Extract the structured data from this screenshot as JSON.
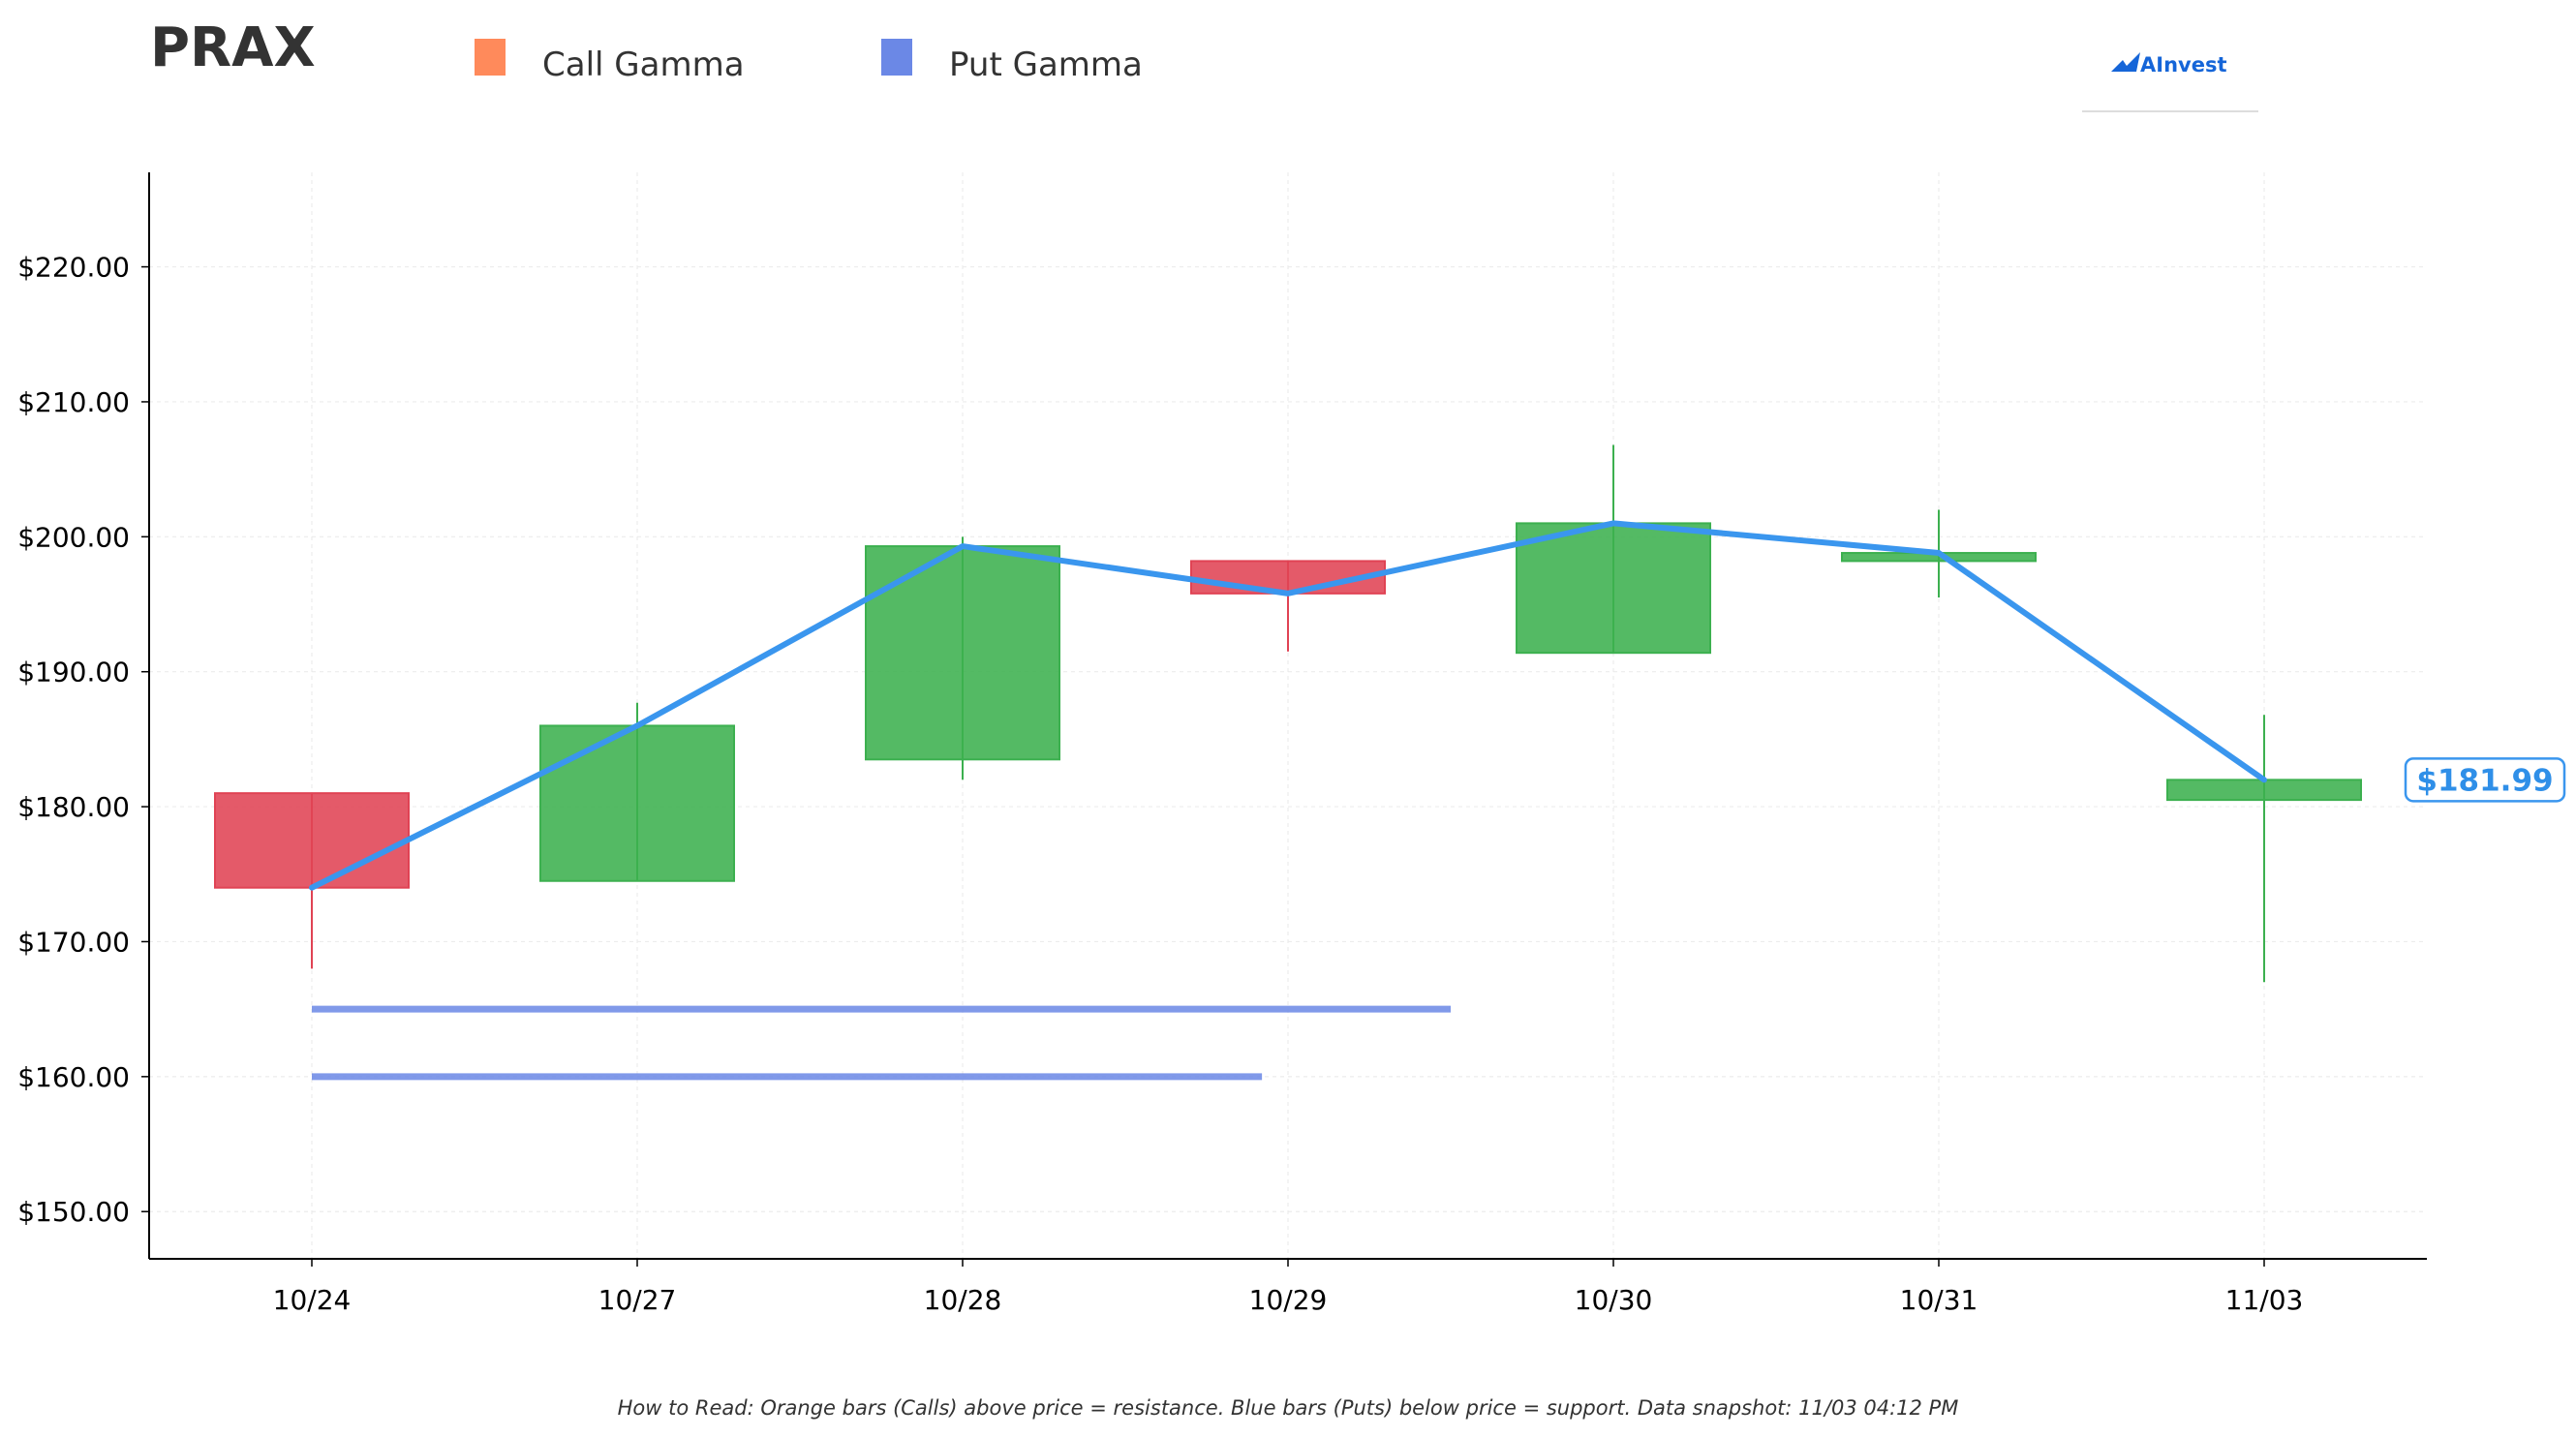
{
  "chart_data": {
    "type": "candlestick",
    "title": "PRAX",
    "legend": {
      "placement": "top",
      "entries": [
        {
          "label": "Call Gamma",
          "color": "#ff8a5b"
        },
        {
          "label": "Put Gamma",
          "color": "#6b88e6"
        }
      ]
    },
    "categories": [
      "10/24",
      "10/27",
      "10/28",
      "10/29",
      "10/30",
      "10/31",
      "11/03"
    ],
    "candles": [
      {
        "date": "10/24",
        "open": 181.0,
        "high": 181.0,
        "low": 168.0,
        "close": 174.0
      },
      {
        "date": "10/27",
        "open": 174.5,
        "high": 187.7,
        "low": 174.5,
        "close": 186.0
      },
      {
        "date": "10/28",
        "open": 183.5,
        "high": 200.0,
        "low": 182.0,
        "close": 199.3
      },
      {
        "date": "10/29",
        "open": 198.2,
        "high": 198.2,
        "low": 191.5,
        "close": 195.8
      },
      {
        "date": "10/30",
        "open": 191.4,
        "high": 206.8,
        "low": 191.4,
        "close": 201.0
      },
      {
        "date": "10/31",
        "open": 198.2,
        "high": 202.0,
        "low": 195.5,
        "close": 198.8
      },
      {
        "date": "11/03",
        "open": 180.5,
        "high": 186.8,
        "low": 167.0,
        "close": 181.99
      }
    ],
    "price_line": {
      "color": "#3a96ee",
      "values": [
        174.0,
        186.0,
        199.3,
        195.8,
        201.0,
        198.8,
        181.99
      ]
    },
    "put_gamma_levels": [
      {
        "price": 165.0,
        "start": "10/24",
        "end_index": 3.5
      },
      {
        "price": 160.0,
        "start": "10/24",
        "end_index": 2.92
      }
    ],
    "current_price_label": "$181.99",
    "y_axis": {
      "range": [
        146.5,
        227.0
      ],
      "ticks": [
        150,
        160,
        170,
        180,
        190,
        200,
        210,
        220
      ],
      "tick_labels": [
        "$150.00",
        "$160.00",
        "$170.00",
        "$180.00",
        "$190.00",
        "$200.00",
        "$210.00",
        "$220.00"
      ]
    },
    "grid": true,
    "colors": {
      "up": "#3cb04f",
      "down": "#e04354"
    },
    "footer_note": "How to Read: Orange bars (Calls) above price = resistance. Blue bars (Puts) below price = support. Data snapshot: 11/03 04:12 PM",
    "brand": "AInvest"
  }
}
